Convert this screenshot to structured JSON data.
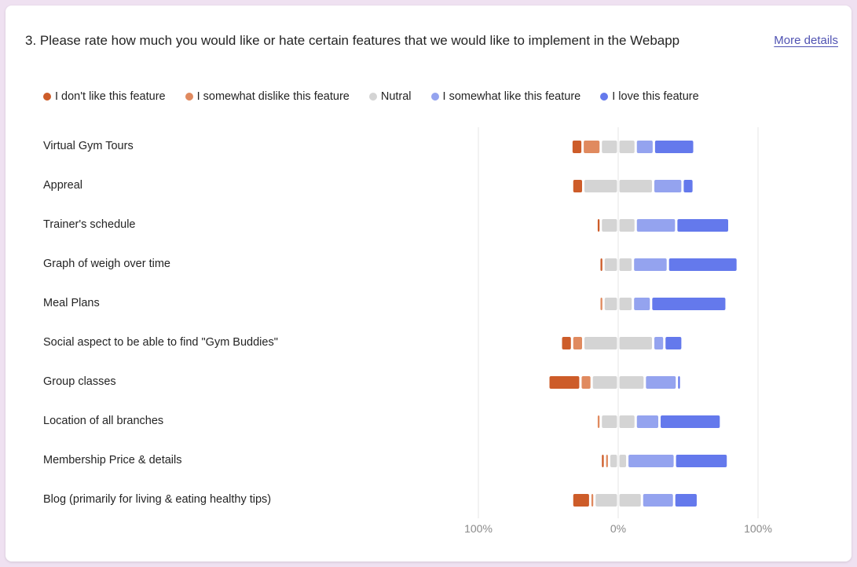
{
  "question": {
    "text": "3. Please rate how much you would like or hate certain features that we would like to implement in the Webapp",
    "more_details": "More details"
  },
  "colors": {
    "dislike": "#cd5c29",
    "somewhat_dislike": "#e08a5f",
    "neutral": "#d4d4d4",
    "somewhat_like": "#94a3ef",
    "love": "#6479ec"
  },
  "chart_data": {
    "type": "bar",
    "stacked": "diverging",
    "xlim": [
      -100,
      100
    ],
    "x_tick_labels": [
      "100%",
      "0%",
      "100%"
    ],
    "legend_position": "top",
    "series": [
      {
        "name": "I don't like this feature",
        "color": "#cd5c29"
      },
      {
        "name": "I somewhat dislike this feature",
        "color": "#e08a5f"
      },
      {
        "name": "Nutral",
        "color": "#d4d4d4"
      },
      {
        "name": "I somewhat like this feature",
        "color": "#94a3ef"
      },
      {
        "name": "I love this feature",
        "color": "#6479ec"
      }
    ],
    "categories": [
      "Virtual Gym Tours",
      "Appreal",
      "Trainer's schedule",
      "Graph of weigh over time",
      "Meal Plans",
      "Social aspect to be able to find \"Gym Buddies\"",
      "Group classes",
      "Location of all branches",
      "Membership Price & details",
      "Blog (primarily for living & eating healthy tips)"
    ],
    "values": [
      [
        8,
        13,
        25,
        13,
        29
      ],
      [
        8,
        0,
        50,
        21,
        8
      ],
      [
        3,
        0,
        25,
        29,
        38
      ],
      [
        3,
        0,
        21,
        25,
        50
      ],
      [
        0,
        3,
        21,
        13,
        54
      ],
      [
        8,
        8,
        50,
        8,
        13
      ],
      [
        23,
        8,
        38,
        23,
        3
      ],
      [
        0,
        3,
        25,
        17,
        44
      ],
      [
        3,
        3,
        13,
        34,
        38
      ],
      [
        13,
        3,
        34,
        23,
        17
      ]
    ]
  }
}
